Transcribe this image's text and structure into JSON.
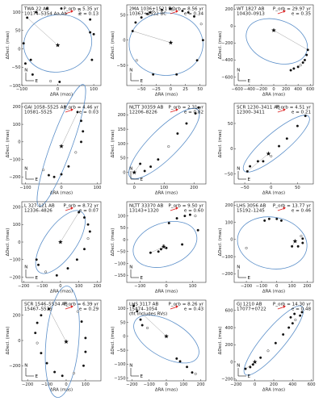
{
  "chart_data": [
    {
      "type": "scatter",
      "name_line1": "TWA 22 AB",
      "name_line2": "10174–5354 Aa,Ab",
      "period": "P_orb = 5.35 yr",
      "ecc": "e = 0.13",
      "xlabel": "ΔRA (mas)",
      "ylabel": "ΔDecl. (mas)",
      "xlim": [
        -100,
        120
      ],
      "ylim": [
        -100,
        120
      ],
      "xticks": [
        "−100",
        "0",
        "100"
      ],
      "yticks": [
        "100",
        "50",
        "0",
        "−50",
        "−100"
      ],
      "xtick_values": [
        -100,
        0,
        100
      ],
      "ytick_values": [
        100,
        50,
        0,
        -50,
        -100
      ],
      "orbit": {
        "cx": 0,
        "cy": 15,
        "a": 95,
        "b": 78,
        "angle_deg": 10
      },
      "star": [
        0,
        10
      ],
      "points": [
        [
          -85,
          85
        ],
        [
          -60,
          100
        ],
        [
          -30,
          110
        ],
        [
          10,
          110
        ],
        [
          60,
          105
        ],
        [
          90,
          80
        ],
        [
          100,
          40
        ],
        [
          95,
          -30
        ],
        [
          5,
          -90
        ],
        [
          -20,
          -88
        ],
        [
          -70,
          -70
        ],
        [
          -90,
          -40
        ],
        [
          -95,
          15
        ],
        [
          -75,
          -30
        ],
        [
          60,
          95
        ],
        [
          90,
          45
        ]
      ],
      "compass": "bottom-left",
      "compass_n": "N",
      "compass_e": "E"
    },
    {
      "type": "scatter",
      "name_line1": "2MA 1036+1521 BC",
      "name_line2": "10367+1522 BC",
      "period": "P_orb = 8.56 yr",
      "ecc": "e = 0.34",
      "xlabel": "ΔRA (mas)",
      "ylabel": "ΔDecl. (mas)",
      "xlim": [
        -75,
        60
      ],
      "ylim": [
        -90,
        70
      ],
      "xticks": [
        "−50",
        "−25",
        "0",
        "25",
        "50"
      ],
      "yticks": [
        "50",
        "0",
        "−50"
      ],
      "xtick_values": [
        -50,
        -25,
        0,
        25,
        50
      ],
      "ytick_values": [
        50,
        0,
        -50
      ],
      "orbit": {
        "cx": -8,
        "cy": -8,
        "a": 63,
        "b": 62,
        "angle_deg": 0
      },
      "star": [
        0,
        -5
      ],
      "points": [
        [
          -65,
          18
        ],
        [
          -60,
          35
        ],
        [
          -50,
          45
        ],
        [
          -40,
          52
        ],
        [
          -30,
          57
        ],
        [
          -15,
          60
        ],
        [
          0,
          62
        ],
        [
          20,
          58
        ],
        [
          40,
          47
        ],
        [
          52,
          32
        ],
        [
          55,
          0
        ],
        [
          45,
          -40
        ],
        [
          10,
          -68
        ],
        [
          -30,
          -68
        ],
        [
          -58,
          -40
        ],
        [
          -35,
          55
        ],
        [
          30,
          55
        ]
      ],
      "compass": "bottom-left",
      "compass_n": "N",
      "compass_e": "E"
    },
    {
      "type": "scatter",
      "name_line1": "WT 1827 AB",
      "name_line2": "10430–0913",
      "period": "P_orb = 29.97 yr",
      "ecc": "e = 0.35",
      "xlabel": "ΔRA (mas)",
      "ylabel": "ΔDecl. (mas)",
      "xlim": [
        -650,
        650
      ],
      "ylim": [
        -700,
        250
      ],
      "xticks": [
        "−600",
        "−400",
        "−200",
        "0",
        "200",
        "400",
        "600"
      ],
      "yticks": [
        "200",
        "0",
        "−200",
        "−400",
        "−600"
      ],
      "xtick_values": [
        -600,
        -400,
        -200,
        0,
        200,
        400,
        600
      ],
      "ytick_values": [
        200,
        0,
        -200,
        -400,
        -600
      ],
      "orbit": {
        "cx": 50,
        "cy": -180,
        "a": 520,
        "b": 250,
        "angle_deg": -20
      },
      "star": [
        0,
        -50
      ],
      "points": [
        [
          560,
          -280
        ],
        [
          540,
          -340
        ],
        [
          510,
          -400
        ],
        [
          480,
          -430
        ],
        [
          440,
          -460
        ],
        [
          400,
          -480
        ],
        [
          330,
          -500
        ],
        [
          280,
          -520
        ]
      ],
      "compass": "bottom-left",
      "compass_n": "N",
      "compass_e": "E"
    },
    {
      "type": "scatter",
      "name_line1": "GAI 1058–5525 AB",
      "name_line2": "10581–5525",
      "period": "P_orb = 4.46 yr",
      "ecc": "e = 0.03",
      "xlabel": "ΔRA (mas)",
      "ylabel": "ΔDecl. (mas)",
      "xlim": [
        -110,
        110
      ],
      "ylim": [
        -240,
        220
      ],
      "xticks": [
        "−100",
        "0",
        "100"
      ],
      "yticks": [
        "200",
        "100",
        "0",
        "−100",
        "−200"
      ],
      "xtick_values": [
        -100,
        0,
        100
      ],
      "ytick_values": [
        200,
        100,
        0,
        -100,
        -200
      ],
      "orbit": {
        "cx": 0,
        "cy": -20,
        "a": 180,
        "b": 60,
        "angle_deg": 70
      },
      "star": [
        0,
        -25
      ],
      "points": [
        [
          45,
          170
        ],
        [
          55,
          120
        ],
        [
          60,
          60
        ],
        [
          55,
          0
        ],
        [
          40,
          -60
        ],
        [
          20,
          -140
        ],
        [
          0,
          -185
        ],
        [
          -20,
          -200
        ],
        [
          -35,
          -190
        ],
        [
          -50,
          -160
        ]
      ],
      "compass": "bottom-left",
      "compass_n": "N",
      "compass_e": "E"
    },
    {
      "type": "scatter",
      "name_line1": "NLTT 30359 AB",
      "name_line2": "12206–8226",
      "period": "P_orb = 2.31 yr",
      "ecc": "e = 0.82",
      "xlabel": "ΔRA (mas)",
      "ylabel": "ΔDecl. (mas)",
      "xlim": [
        -25,
        240
      ],
      "ylim": [
        -40,
        240
      ],
      "xticks": [
        "0",
        "100",
        "200"
      ],
      "yticks": [
        "200",
        "150",
        "100",
        "50",
        "0"
      ],
      "xtick_values": [
        0,
        100,
        200
      ],
      "ytick_values": [
        200,
        150,
        100,
        50,
        0
      ],
      "orbit": {
        "cx": 100,
        "cy": 100,
        "a": 160,
        "b": 50,
        "angle_deg": 45
      },
      "star": [
        0,
        0
      ],
      "points": [
        [
          20,
          30
        ],
        [
          35,
          5
        ],
        [
          55,
          20
        ],
        [
          80,
          45
        ],
        [
          115,
          90
        ],
        [
          145,
          135
        ],
        [
          175,
          170
        ],
        [
          205,
          205
        ],
        [
          215,
          225
        ]
      ],
      "compass": "bottom-left",
      "compass_n": "N",
      "compass_e": "E"
    },
    {
      "type": "scatter",
      "name_line1": "SCR 1230–3411 AB",
      "name_line2": "12300–3411",
      "period": "P_orb = 4.51 yr",
      "ecc": "e = 0.21",
      "xlabel": "ΔRA (mas)",
      "ylabel": "ΔDecl. (mas)",
      "xlim": [
        -70,
        80
      ],
      "ylim": [
        -70,
        90
      ],
      "xticks": [
        "−50",
        "0",
        "50"
      ],
      "yticks": [
        "50",
        "0",
        "−50"
      ],
      "xtick_values": [
        -50,
        0,
        50
      ],
      "ytick_values": [
        50,
        0,
        -50
      ],
      "orbit": {
        "cx": 10,
        "cy": 10,
        "a": 80,
        "b": 22,
        "angle_deg": 40
      },
      "star": [
        -5,
        -10
      ],
      "points": [
        [
          -45,
          -45
        ],
        [
          -40,
          -35
        ],
        [
          -25,
          -25
        ],
        [
          -15,
          -25
        ],
        [
          0,
          -15
        ],
        [
          15,
          5
        ],
        [
          30,
          20
        ],
        [
          50,
          45
        ],
        [
          65,
          65
        ]
      ],
      "compass": "bottom-left",
      "compass_n": "N",
      "compass_e": "E"
    },
    {
      "type": "scatter",
      "name_line1": "L 327-121 AB",
      "name_line2": "12336–4826",
      "period": "P_orb = 8.72 yr",
      "ecc": "e = 0.07",
      "xlabel": "ΔRA (mas)",
      "ylabel": "ΔDecl. (mas)",
      "xlim": [
        -210,
        220
      ],
      "ylim": [
        -230,
        230
      ],
      "xticks": [
        "−200",
        "−100",
        "0",
        "100",
        "200"
      ],
      "yticks": [
        "200",
        "100",
        "0",
        "−100",
        "−200"
      ],
      "xtick_values": [
        -200,
        -100,
        0,
        100,
        200
      ],
      "ytick_values": [
        200,
        100,
        0,
        -100,
        -200
      ],
      "orbit": {
        "cx": 0,
        "cy": 0,
        "a": 200,
        "b": 90,
        "angle_deg": 55
      },
      "star": [
        0,
        0
      ],
      "points": [
        [
          100,
          170
        ],
        [
          130,
          140
        ],
        [
          150,
          100
        ],
        [
          160,
          60
        ],
        [
          150,
          20
        ],
        [
          130,
          -40
        ],
        [
          90,
          -100
        ],
        [
          40,
          -150
        ],
        [
          -20,
          -190
        ],
        [
          -80,
          -170
        ],
        [
          -120,
          -130
        ],
        [
          -130,
          -100
        ]
      ],
      "compass": "bottom-left",
      "compass_n": "N",
      "compass_e": "E"
    },
    {
      "type": "scatter",
      "name_line1": "NLTT 33370 AB",
      "name_line2": "13143+1320",
      "period": "P_orb = 9.50 yr",
      "ecc": "e = 0.60",
      "xlabel": "ΔRA (mas)",
      "ylabel": "ΔDecl. (mas)",
      "xlim": [
        -150,
        150
      ],
      "ylim": [
        -180,
        160
      ],
      "xticks": [
        "−100",
        "0",
        "100"
      ],
      "yticks": [
        "100",
        "50",
        "0",
        "−50",
        "−100",
        "−150"
      ],
      "xtick_values": [
        -100,
        0,
        100
      ],
      "ytick_values": [
        100,
        50,
        0,
        -50,
        -100,
        -150
      ],
      "orbit": {
        "cx": -5,
        "cy": -20,
        "a": 125,
        "b": 90,
        "angle_deg": 20
      },
      "star": [
        -10,
        -30
      ],
      "points": [
        [
          -60,
          -55
        ],
        [
          -30,
          -50
        ],
        [
          -20,
          -40
        ],
        [
          0,
          -35
        ],
        [
          -10,
          -25
        ],
        [
          10,
          70
        ],
        [
          40,
          90
        ],
        [
          70,
          100
        ],
        [
          90,
          105
        ],
        [
          110,
          100
        ],
        [
          120,
          40
        ],
        [
          60,
          -20
        ]
      ],
      "compass": "bottom-left",
      "compass_n": "N",
      "compass_e": "E"
    },
    {
      "type": "scatter",
      "name_line1": "LHS 3056 AB",
      "name_line2": "15192–1245",
      "period": "P_orb = 13.77 yr",
      "ecc": "e = 0.46",
      "xlabel": "ΔRA (mas)",
      "ylabel": "ΔDecl. (mas)",
      "xlim": [
        -280,
        240
      ],
      "ylim": [
        -250,
        220
      ],
      "xticks": [
        "−200",
        "−100",
        "0",
        "100",
        "200"
      ],
      "yticks": [
        "200",
        "100",
        "0",
        "−100",
        "−200"
      ],
      "xtick_values": [
        -200,
        -100,
        0,
        100,
        200
      ],
      "ytick_values": [
        200,
        100,
        0,
        -100,
        -200
      ],
      "orbit": {
        "cx": -30,
        "cy": -20,
        "a": 230,
        "b": 150,
        "angle_deg": -10
      },
      "star": [
        120,
        -10
      ],
      "points": [
        [
          100,
          -40
        ],
        [
          140,
          -40
        ],
        [
          170,
          -20
        ],
        [
          170,
          5
        ],
        [
          160,
          20
        ],
        [
          30,
          110
        ],
        [
          0,
          120
        ],
        [
          -50,
          120
        ],
        [
          -80,
          110
        ],
        [
          -200,
          -50
        ]
      ],
      "compass": "bottom-left",
      "compass_n": "N",
      "compass_e": "E"
    },
    {
      "type": "scatter",
      "name_line1": "SCR 1546–5534 AB",
      "name_line2": "15467–5535",
      "period": "P_orb = 6.39 yr",
      "ecc": "e = 0.29",
      "xlabel": "ΔRA (mas)",
      "ylabel": "ΔDecl. (mas)",
      "xlim": [
        -230,
        180
      ],
      "ylim": [
        -320,
        320
      ],
      "xticks": [
        "−200",
        "−100",
        "0",
        "100"
      ],
      "yticks": [
        "200",
        "0",
        "−200"
      ],
      "xtick_values": [
        -200,
        -100,
        0,
        100
      ],
      "ytick_values": [
        200,
        0,
        -200
      ],
      "orbit": {
        "cx": -20,
        "cy": -10,
        "a": 290,
        "b": 130,
        "angle_deg": 85
      },
      "star": [
        0,
        -10
      ],
      "points": [
        [
          -90,
          250
        ],
        [
          -130,
          200
        ],
        [
          -150,
          140
        ],
        [
          -160,
          60
        ],
        [
          -150,
          -20
        ],
        [
          -130,
          -100
        ],
        [
          -100,
          -180
        ],
        [
          -60,
          -250
        ],
        [
          -20,
          -280
        ],
        [
          40,
          -260
        ],
        [
          90,
          -200
        ],
        [
          100,
          -90
        ],
        [
          100,
          20
        ],
        [
          80,
          150
        ],
        [
          60,
          230
        ]
      ],
      "compass": "bottom-left",
      "compass_n": "N",
      "compass_e": "E"
    },
    {
      "type": "scatter",
      "name_line1": "LHS 3117 AB",
      "name_line2": "15474–1054",
      "name_line3": "(fit includes RVs)",
      "period": "P_orb = 8.26 yr",
      "ecc": "e = 0.43",
      "xlabel": "ΔRA (mas)",
      "ylabel": "ΔDecl. (mas)",
      "xlim": [
        -230,
        230
      ],
      "ylim": [
        -160,
        130
      ],
      "xticks": [
        "−200",
        "−100",
        "0",
        "100",
        "200"
      ],
      "yticks": [
        "100",
        "50",
        "0",
        "−50",
        "−100",
        "−150"
      ],
      "xtick_values": [
        -200,
        -100,
        0,
        100,
        200
      ],
      "ytick_values": [
        100,
        50,
        0,
        -50,
        -100,
        -150
      ],
      "orbit": {
        "cx": 0,
        "cy": -10,
        "a": 210,
        "b": 65,
        "angle_deg": -30
      },
      "star": [
        0,
        0
      ],
      "points": [
        [
          -190,
          110
        ],
        [
          -170,
          90
        ],
        [
          -150,
          60
        ],
        [
          -140,
          40
        ],
        [
          -110,
          30
        ],
        [
          60,
          -80
        ],
        [
          80,
          -90
        ],
        [
          120,
          -110
        ],
        [
          150,
          -130
        ],
        [
          170,
          -135
        ]
      ],
      "compass": "bottom-left",
      "compass_n": "N",
      "compass_e": "E"
    },
    {
      "type": "scatter",
      "name_line1": "GJ 1210 AB",
      "name_line2": "17077+0722",
      "period": "P_orb = 14.30 yr",
      "ecc": "e = 0.48",
      "xlabel": "ΔRA (mas)",
      "ylabel": "ΔDecl. (mas)",
      "xlim": [
        -220,
        620
      ],
      "ylim": [
        -220,
        720
      ],
      "xticks": [
        "−200",
        "0",
        "200",
        "400",
        "600"
      ],
      "yticks": [
        "600",
        "400",
        "200",
        "0",
        "−200"
      ],
      "xtick_values": [
        -200,
        0,
        200,
        400,
        600
      ],
      "ytick_values": [
        600,
        400,
        200,
        0,
        -200
      ],
      "orbit": {
        "cx": 200,
        "cy": 250,
        "a": 470,
        "b": 130,
        "angle_deg": 50
      },
      "star": [
        0,
        0
      ],
      "points": [
        [
          -100,
          -80
        ],
        [
          -50,
          -60
        ],
        [
          -20,
          -30
        ],
        [
          60,
          50
        ],
        [
          140,
          130
        ],
        [
          220,
          220
        ],
        [
          300,
          320
        ],
        [
          360,
          400
        ],
        [
          400,
          450
        ],
        [
          430,
          490
        ],
        [
          480,
          540
        ],
        [
          500,
          580
        ],
        [
          420,
          560
        ],
        [
          380,
          520
        ]
      ],
      "compass": "bottom-left",
      "compass_n": "N",
      "compass_e": "E"
    }
  ]
}
